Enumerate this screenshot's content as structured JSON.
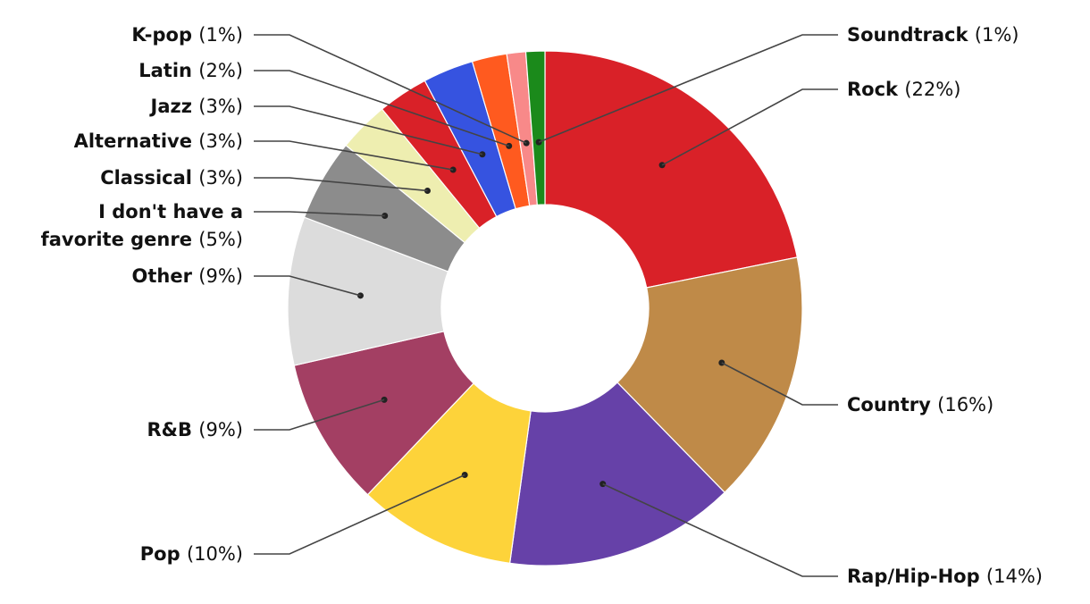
{
  "chart_data": {
    "type": "pie",
    "variant": "donut",
    "title": "",
    "start_angle_deg": 0,
    "direction": "clockwise",
    "legend": "none",
    "slices": [
      {
        "name": "Rock",
        "display": "Rock",
        "percent_label": "(22%)",
        "value": 22.0,
        "color": "#d92128",
        "side": "right"
      },
      {
        "name": "Country",
        "display": "Country",
        "percent_label": "(16%)",
        "value": 16.0,
        "color": "#bf8a48",
        "side": "right"
      },
      {
        "name": "Rap/Hip-Hop",
        "display": "Rap/Hip-Hop",
        "percent_label": "(14%)",
        "value": 14.6,
        "color": "#6641a8",
        "side": "right"
      },
      {
        "name": "Pop",
        "display": "Pop",
        "percent_label": "(10%)",
        "value": 10.0,
        "color": "#fdd33a",
        "side": "left"
      },
      {
        "name": "R&B",
        "display": "R&B",
        "percent_label": "(9%)",
        "value": 9.4,
        "color": "#a33f63",
        "side": "left"
      },
      {
        "name": "Other",
        "display": "Other",
        "percent_label": "(9%)",
        "value": 9.4,
        "color": "#dcdcdc",
        "side": "left"
      },
      {
        "name": "I don't have a favorite genre",
        "display": "I don't have a",
        "display2": "favorite genre",
        "percent_label": "(5%)",
        "value": 5.2,
        "color": "#8c8c8c",
        "side": "left"
      },
      {
        "name": "Classical",
        "display": "Classical",
        "percent_label": "(3%)",
        "value": 3.2,
        "color": "#eeeeb0",
        "side": "left"
      },
      {
        "name": "Alternative",
        "display": "Alternative",
        "percent_label": "(3%)",
        "value": 3.2,
        "color": "#d92128",
        "side": "left"
      },
      {
        "name": "Jazz",
        "display": "Jazz",
        "percent_label": "(3%)",
        "value": 3.2,
        "color": "#3653e0",
        "side": "left"
      },
      {
        "name": "Latin",
        "display": "Latin",
        "percent_label": "(2%)",
        "value": 2.2,
        "color": "#ff5a1f",
        "side": "left"
      },
      {
        "name": "K-pop",
        "display": "K-pop",
        "percent_label": "(1%)",
        "value": 1.2,
        "color": "#f88989",
        "side": "left"
      },
      {
        "name": "Soundtrack",
        "display": "Soundtrack",
        "percent_label": "(1%)",
        "value": 1.2,
        "color": "#1b8a1b",
        "side": "right"
      }
    ]
  }
}
